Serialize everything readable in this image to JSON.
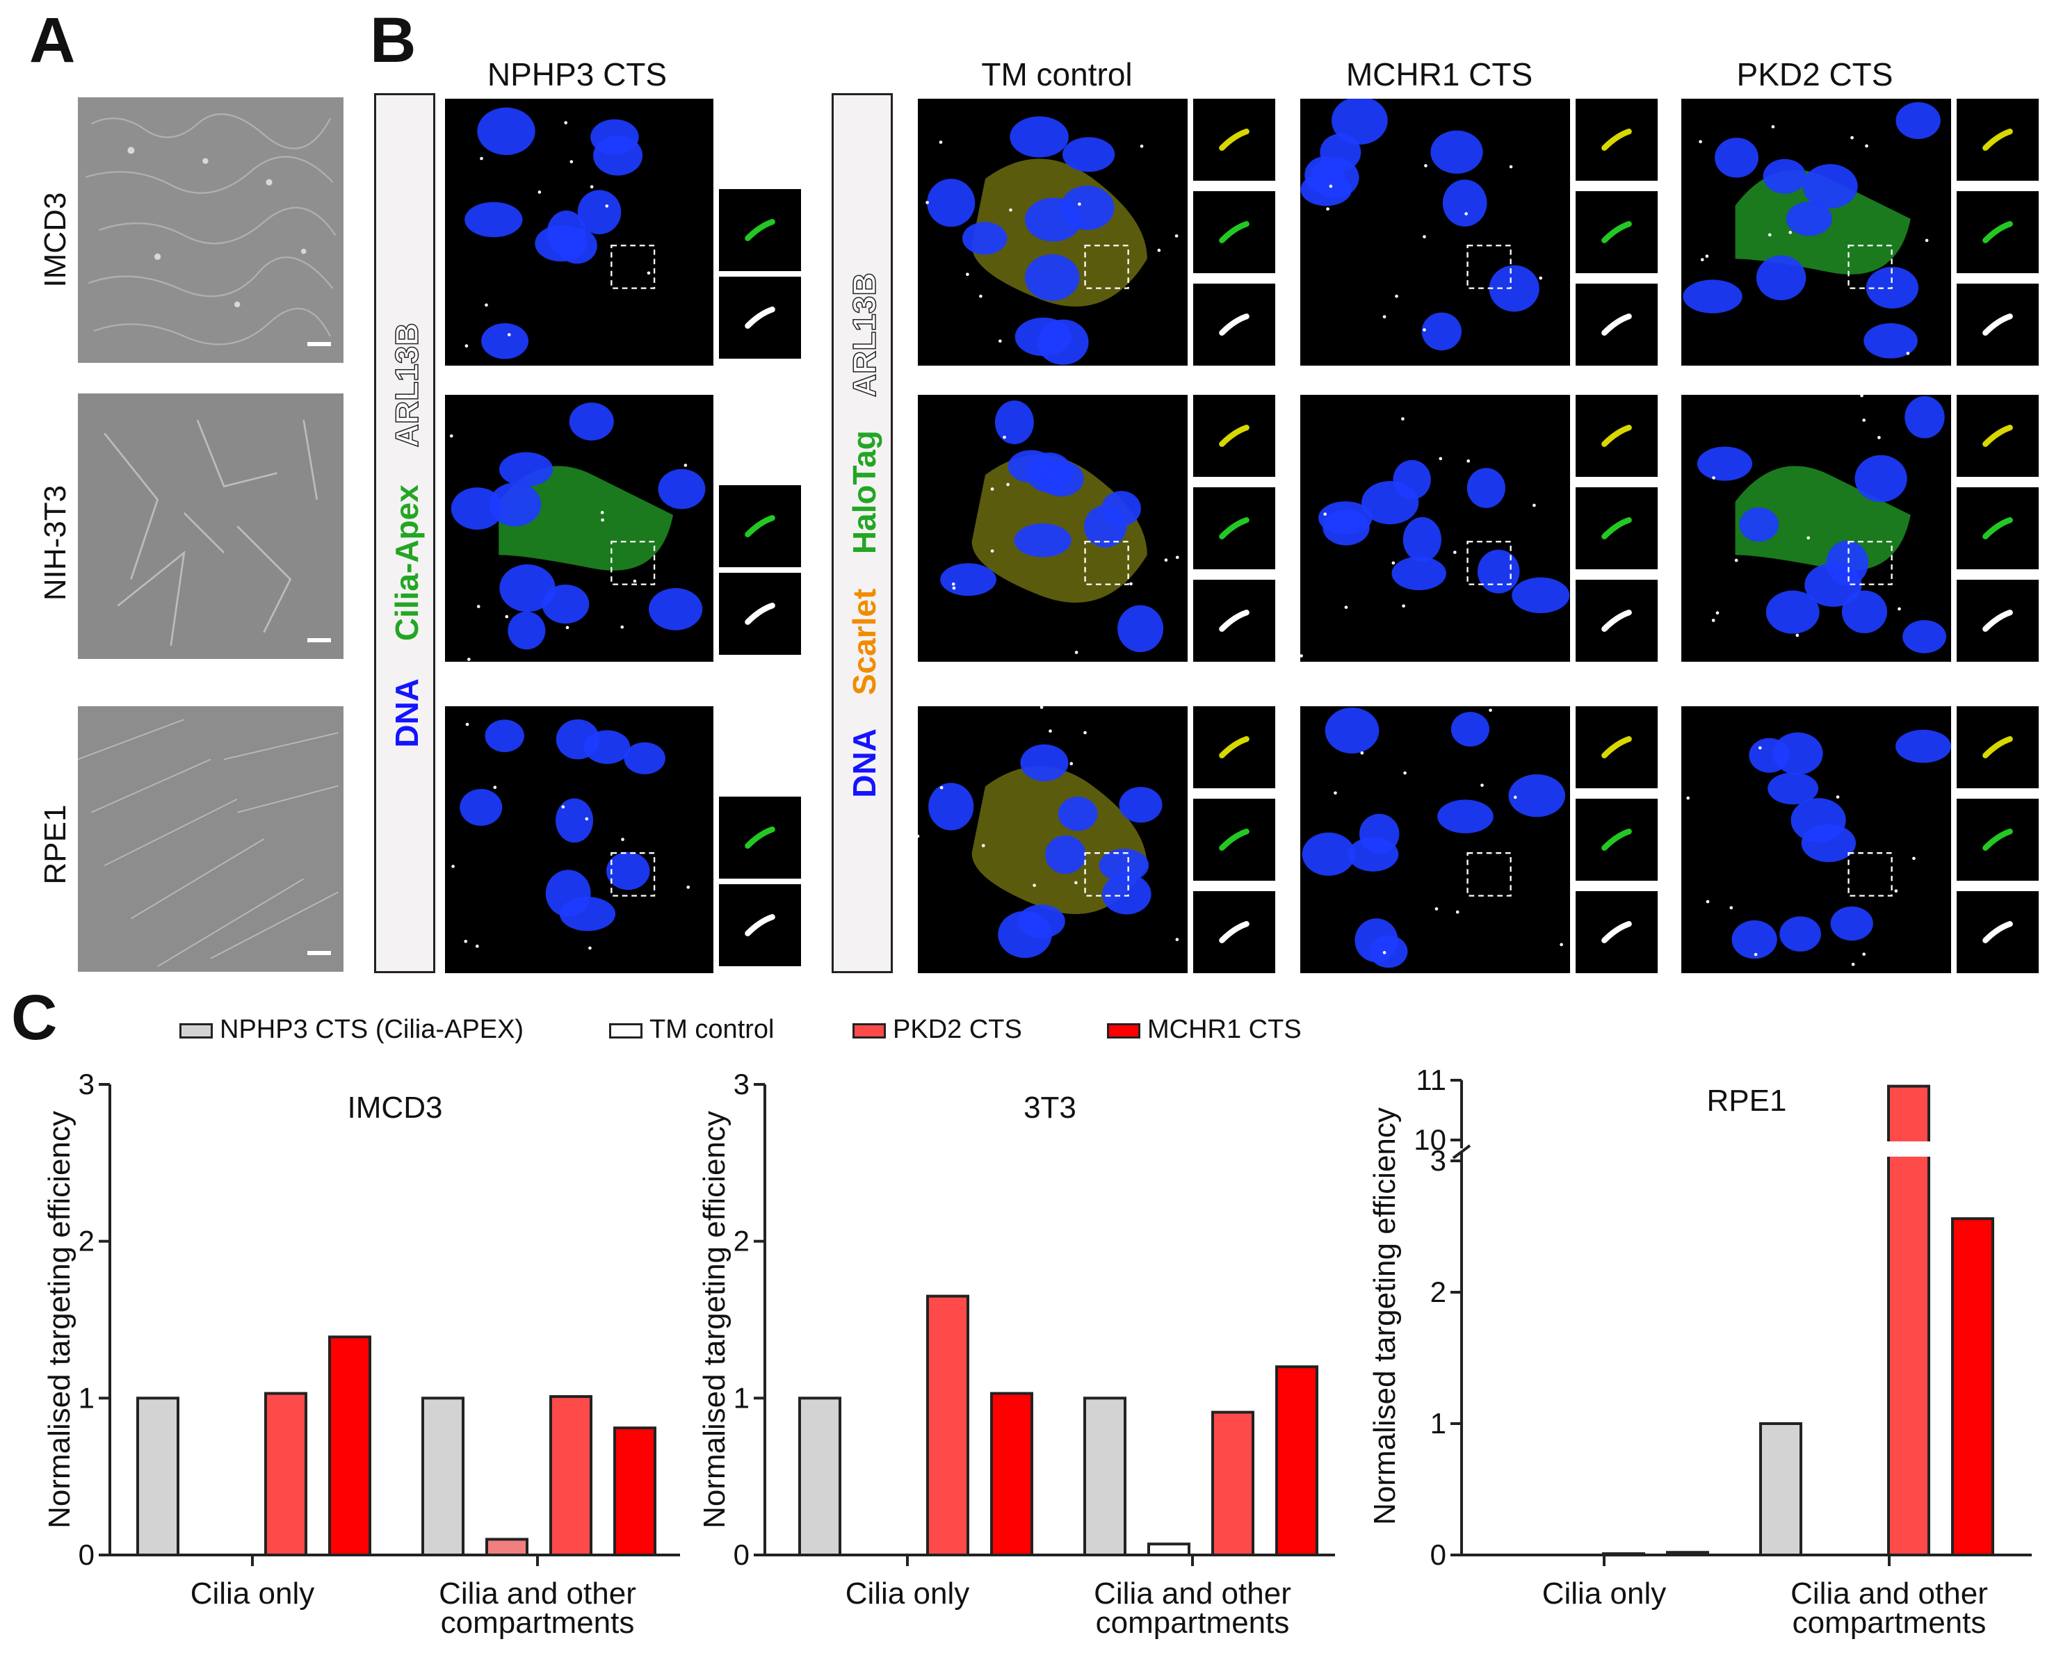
{
  "panel_letters": {
    "a": "A",
    "b": "B",
    "c": "C"
  },
  "panel_a": {
    "rows": [
      "IMCD3",
      "NIH-3T3",
      "RPE1"
    ]
  },
  "panel_b": {
    "columns": [
      "NPHP3 CTS",
      "TM control",
      "MCHR1 CTS",
      "PKD2 CTS"
    ],
    "left_stain": {
      "dna": "DNA",
      "cilia": "Cilia-Apex",
      "arl": "ARL13B"
    },
    "right_stain": {
      "dna": "DNA",
      "scarlet": "Scarlet",
      "halo": "HaloTag",
      "arl": "ARL13B"
    },
    "colors": {
      "dna": "#1414ff",
      "green": "#23a623",
      "orange": "#f08c00",
      "arl": "#ffffff"
    }
  },
  "panel_c": {
    "legend": [
      {
        "label": "NPHP3 CTS (Cilia-APEX)",
        "color": "#d3d3d3"
      },
      {
        "label": "TM control",
        "color": "#ffffff"
      },
      {
        "label": "PKD2 CTS",
        "color": "#ff4a4a"
      },
      {
        "label": "MCHR1 CTS",
        "color": "#ff0000"
      }
    ]
  },
  "chart_data": [
    {
      "type": "bar",
      "title": "IMCD3",
      "ylabel": "Normalised targeting efficiency",
      "categories": [
        "Cilia only",
        "Cilia and other compartments"
      ],
      "ylim": [
        0,
        3
      ],
      "yticks": [
        "0",
        "1",
        "2",
        "3"
      ],
      "series": [
        {
          "name": "NPHP3 CTS (Cilia-APEX)",
          "color": "#d3d3d3",
          "values": [
            1.0,
            1.0
          ]
        },
        {
          "name": "TM control",
          "color": "#f08080",
          "values": [
            0.0,
            0.1
          ]
        },
        {
          "name": "PKD2 CTS",
          "color": "#ff4a4a",
          "values": [
            1.03,
            1.01
          ]
        },
        {
          "name": "MCHR1 CTS",
          "color": "#ff0000",
          "values": [
            1.39,
            0.81
          ]
        }
      ]
    },
    {
      "type": "bar",
      "title": "3T3",
      "ylabel": "Normalised targeting efficiency",
      "categories": [
        "Cilia only",
        "Cilia and other compartments"
      ],
      "ylim": [
        0,
        3
      ],
      "yticks": [
        "0",
        "1",
        "2",
        "3"
      ],
      "series": [
        {
          "name": "NPHP3 CTS (Cilia-APEX)",
          "color": "#d3d3d3",
          "values": [
            1.0,
            1.0
          ]
        },
        {
          "name": "TM control",
          "color": "#ffffff",
          "values": [
            0.0,
            0.07
          ]
        },
        {
          "name": "PKD2 CTS",
          "color": "#ff4a4a",
          "values": [
            1.65,
            0.91
          ]
        },
        {
          "name": "MCHR1 CTS",
          "color": "#ff0000",
          "values": [
            1.03,
            1.2
          ]
        }
      ]
    },
    {
      "type": "bar",
      "title": "RPE1",
      "ylabel": "Normalised targeting efficiency",
      "categories": [
        "Cilia only",
        "Cilia and other compartments"
      ],
      "ylim": [
        0,
        11
      ],
      "axis_break": [
        3,
        10
      ],
      "yticks": [
        "0",
        "1",
        "2",
        "3",
        "10",
        "11"
      ],
      "series": [
        {
          "name": "NPHP3 CTS (Cilia-APEX)",
          "color": "#d3d3d3",
          "values": [
            0.0,
            1.0
          ]
        },
        {
          "name": "TM control",
          "color": "#ffffff",
          "values": [
            0.0,
            0.0
          ]
        },
        {
          "name": "PKD2 CTS",
          "color": "#ff4a4a",
          "values": [
            0.01,
            10.9
          ]
        },
        {
          "name": "MCHR1 CTS",
          "color": "#ff0000",
          "values": [
            0.02,
            2.56
          ]
        }
      ]
    }
  ]
}
